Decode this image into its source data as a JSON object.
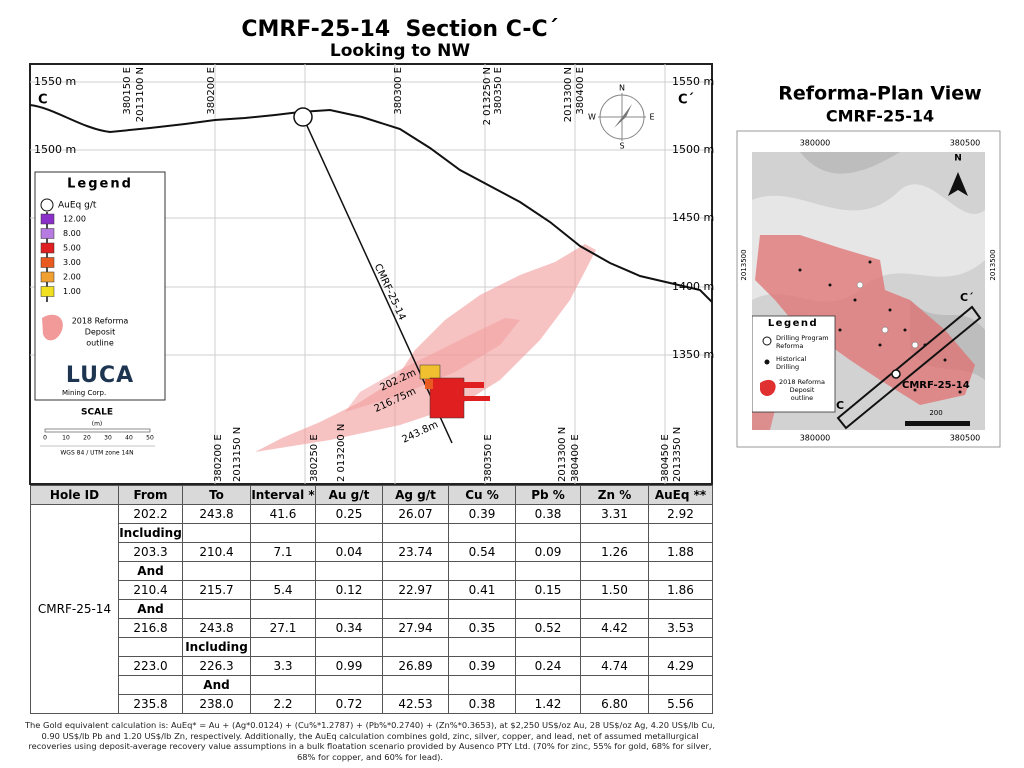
{
  "header": {
    "title": "CMRF-25-14  Section C-C´",
    "subtitle": "Looking to NW"
  },
  "section": {
    "end_left": "C",
    "end_right": "C´",
    "elev_left": [
      "1550 m",
      "1500 m"
    ],
    "elev_right": [
      "1550 m",
      "1500 m",
      "1450 m",
      "1400 m",
      "1350 m"
    ],
    "top_coords": [
      "380150 E",
      "2013100 N",
      "380200 E",
      "380300 E",
      "2 013250 N",
      "380350 E",
      "2013300 N",
      "380400 E"
    ],
    "bottom_coords": [
      "380200 E",
      "2013150 N",
      "380250 E",
      "2 013200 N",
      "380350 E",
      "2013300 N",
      "380400 E",
      "380450 E",
      "2013350 N"
    ],
    "hole": "CMRF-25-14",
    "depths": [
      "202.2m",
      "216.75m",
      "243.8m"
    ],
    "compass": [
      "N",
      "E",
      "S",
      "W"
    ],
    "legend": {
      "title": "Legend",
      "grade_label": "AuEq g/t",
      "grades": [
        "12.00",
        "8.00",
        "5.00",
        "3.00",
        "2.00",
        "1.00"
      ],
      "outline": [
        "2018 Reforma",
        "Deposit",
        "outline"
      ]
    },
    "logo": {
      "name": "LUCA",
      "tagline": "Mining Corp."
    },
    "scale": {
      "title": "SCALE",
      "unit": "(m)",
      "ticks": [
        "0",
        "10",
        "20",
        "30",
        "40",
        "50"
      ],
      "datum": "WGS 84 / UTM zone 14N"
    }
  },
  "plan": {
    "title": "Reforma-Plan View",
    "subtitle": "CMRF-25-14",
    "top_coords": [
      "380000",
      "380500"
    ],
    "bottom_coords": [
      "380000",
      "380500"
    ],
    "side_coords": [
      "2013500",
      "2013500"
    ],
    "north": "N",
    "hole": "CMRF-25-14",
    "end_left": "C",
    "end_right": "C´",
    "scale": "200",
    "legend": {
      "title": "Legend",
      "program": [
        "Drilling Program",
        "Reforma"
      ],
      "historical": [
        "Historical",
        "Drilling"
      ],
      "outline": [
        "2018 Reforma",
        "Deposit",
        "outline"
      ]
    }
  },
  "table": {
    "header": [
      "Hole ID",
      "From",
      "To",
      "Interval *",
      "Au g/t",
      "Ag g/t",
      "Cu %",
      "Pb %",
      "Zn %",
      "AuEq **"
    ],
    "hole_id": "CMRF-25-14",
    "rows": [
      [
        "202.2",
        "243.8",
        "41.6",
        "0.25",
        "26.07",
        "0.39",
        "0.38",
        "3.31",
        "2.92"
      ],
      [
        "Including",
        null,
        null,
        null,
        null,
        null,
        null,
        null,
        null
      ],
      [
        "203.3",
        "210.4",
        "7.1",
        "0.04",
        "23.74",
        "0.54",
        "0.09",
        "1.26",
        "1.88"
      ],
      [
        "And",
        null,
        null,
        null,
        null,
        null,
        null,
        null,
        null
      ],
      [
        "210.4",
        "215.7",
        "5.4",
        "0.12",
        "22.97",
        "0.41",
        "0.15",
        "1.50",
        "1.86"
      ],
      [
        "And",
        null,
        null,
        null,
        null,
        null,
        null,
        null,
        null
      ],
      [
        "216.8",
        "243.8",
        "27.1",
        "0.34",
        "27.94",
        "0.35",
        "0.52",
        "4.42",
        "3.53"
      ],
      [
        null,
        "Including",
        null,
        null,
        null,
        null,
        null,
        null,
        null
      ],
      [
        "223.0",
        "226.3",
        "3.3",
        "0.99",
        "26.89",
        "0.39",
        "0.24",
        "4.74",
        "4.29"
      ],
      [
        null,
        "And",
        null,
        null,
        null,
        null,
        null,
        null,
        null
      ],
      [
        "235.8",
        "238.0",
        "2.2",
        "0.72",
        "42.53",
        "0.38",
        "1.42",
        "6.80",
        "5.56"
      ]
    ]
  },
  "footnote": "The Gold equivalent calculation is: AuEq* = Au + (Ag*0.0124) + (Cu%*1.2787) + (Pb%*0.2740) + (Zn%*0.3653), at $2,250 US$/oz Au, 28 US$/oz Ag, 4.20 US$/lb Cu, 0.90 US$/lb Pb and 1.20 US$/lb Zn, respectively. Additionally, the AuEq calculation combines gold, zinc, silver, copper, and lead, net of assumed metallurgical recoveries using deposit-average recovery value assumptions in a bulk floatation scenario provided by Ausenco PTY Ltd. (70% for zinc, 55% for gold, 68% for silver, 68% for copper, and 60% for lead)."
}
